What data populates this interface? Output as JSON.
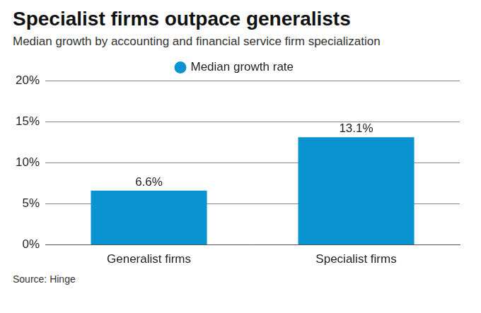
{
  "chart_data": {
    "type": "bar",
    "title": "Specialist firms outpace generalists",
    "subtitle": "Median growth by accounting and financial service firm specialization",
    "source": "Source: Hinge",
    "categories": [
      "Generalist firms",
      "Specialist firms"
    ],
    "series": [
      {
        "name": "Median growth rate",
        "color": "#0a93d1",
        "values": [
          6.6,
          13.1
        ],
        "value_labels": [
          "6.6%",
          "13.1%"
        ]
      }
    ],
    "ylim": [
      0,
      20
    ],
    "yticks": [
      {
        "value": 0,
        "label": "0%"
      },
      {
        "value": 5,
        "label": "5%"
      },
      {
        "value": 10,
        "label": "10%"
      },
      {
        "value": 15,
        "label": "15%"
      },
      {
        "value": 20,
        "label": "20%"
      }
    ],
    "grid": true,
    "legend": "top",
    "data_labels": true
  }
}
